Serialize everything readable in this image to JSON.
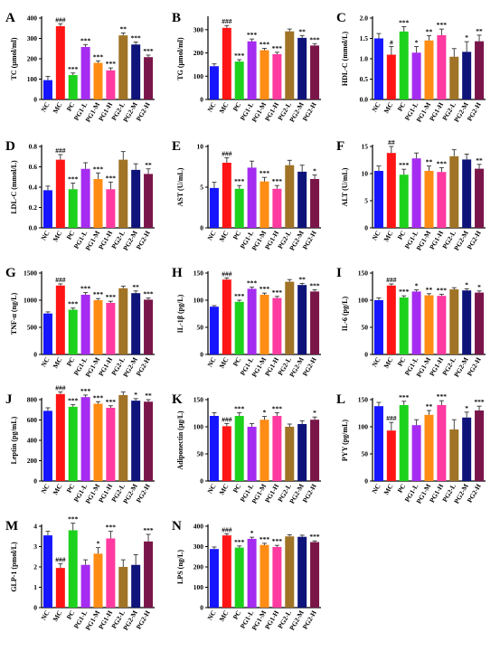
{
  "colors": [
    "#1515ff",
    "#ff1515",
    "#1dd21d",
    "#a52cf0",
    "#ff8c14",
    "#ff3aa0",
    "#a07326",
    "#0f147a",
    "#7a154a"
  ],
  "chart_data": [
    {
      "panel": "A",
      "type": "bar",
      "ylabel": "TC (μmol/ml)",
      "ylim": [
        0,
        400
      ],
      "yticks": [
        0,
        100,
        200,
        300,
        400
      ],
      "categories": [
        "NC",
        "MC",
        "PC",
        "PG1-L",
        "PG1-M",
        "PG1-H",
        "PG2-L",
        "PG2-M",
        "PG2-H"
      ],
      "values": [
        95,
        360,
        120,
        258,
        180,
        143,
        315,
        270,
        208
      ],
      "errors": [
        18,
        12,
        10,
        12,
        10,
        12,
        12,
        12,
        10
      ],
      "sig": [
        "",
        "###",
        "***",
        "***",
        "***",
        "***",
        "**",
        "***",
        "***"
      ]
    },
    {
      "panel": "B",
      "type": "bar",
      "ylabel": "TG (μmol/ml)",
      "ylim": [
        0,
        350
      ],
      "yticks": [
        0,
        100,
        200,
        300
      ],
      "categories": [
        "NC",
        "MC",
        "PC",
        "PG1-L",
        "PG1-M",
        "PG1-H",
        "PG2-L",
        "PG2-M",
        "PG2-H"
      ],
      "values": [
        143,
        308,
        163,
        250,
        212,
        195,
        293,
        265,
        232
      ],
      "errors": [
        10,
        10,
        8,
        10,
        8,
        8,
        10,
        10,
        8
      ],
      "sig": [
        "",
        "###",
        "***",
        "***",
        "***",
        "***",
        "",
        "**",
        "***"
      ]
    },
    {
      "panel": "C",
      "type": "bar",
      "ylabel": "HDL-C (mmol/L)",
      "ylim": [
        0,
        2.0
      ],
      "yticks": [
        0.0,
        0.5,
        1.0,
        1.5,
        2.0
      ],
      "categories": [
        "NC",
        "MC",
        "PC",
        "PG1-L",
        "PG1-M",
        "PG1-H",
        "PG2-L",
        "PG2-M",
        "PG2-H"
      ],
      "values": [
        1.5,
        1.1,
        1.67,
        1.15,
        1.45,
        1.58,
        1.05,
        1.17,
        1.43
      ],
      "errors": [
        0.12,
        0.2,
        0.12,
        0.15,
        0.12,
        0.15,
        0.2,
        0.25,
        0.15
      ],
      "sig": [
        "",
        "#",
        "***",
        "*",
        "**",
        "***",
        "",
        "*",
        "**"
      ]
    },
    {
      "panel": "D",
      "type": "bar",
      "ylabel": "LDL-C (mmol/L)",
      "ylim": [
        0,
        0.8
      ],
      "yticks": [
        0.0,
        0.2,
        0.4,
        0.6,
        0.8
      ],
      "categories": [
        "NC",
        "MC",
        "PC",
        "PG1-L",
        "PG1-M",
        "PG1-H",
        "PG2-L",
        "PG2-M",
        "PG2-H"
      ],
      "values": [
        0.37,
        0.67,
        0.38,
        0.58,
        0.48,
        0.38,
        0.67,
        0.57,
        0.53
      ],
      "errors": [
        0.04,
        0.05,
        0.06,
        0.06,
        0.06,
        0.07,
        0.08,
        0.06,
        0.05
      ],
      "sig": [
        "",
        "###",
        "***",
        "",
        "***",
        "***",
        "",
        "",
        "**"
      ]
    },
    {
      "panel": "E",
      "type": "bar",
      "ylabel": "AST (U/mL)",
      "ylim": [
        0,
        10
      ],
      "yticks": [
        0,
        5,
        10
      ],
      "categories": [
        "NC",
        "MC",
        "PC",
        "PG1-L",
        "PG1-M",
        "PG1-H",
        "PG2-L",
        "PG2-M",
        "PG2-H"
      ],
      "values": [
        4.9,
        8.0,
        4.8,
        7.4,
        5.7,
        4.8,
        7.7,
        6.9,
        6.0
      ],
      "errors": [
        0.7,
        0.6,
        0.4,
        0.8,
        0.5,
        0.4,
        0.6,
        0.8,
        0.5
      ],
      "sig": [
        "",
        "###",
        "***",
        "",
        "***",
        "***",
        "",
        "",
        "*"
      ]
    },
    {
      "panel": "F",
      "type": "bar",
      "ylabel": "ALT (U/mL)",
      "ylim": [
        0,
        15
      ],
      "yticks": [
        0,
        5,
        10,
        15
      ],
      "categories": [
        "NC",
        "MC",
        "PC",
        "PG1-L",
        "PG1-M",
        "PG1-H",
        "PG2-L",
        "PG2-M",
        "PG2-H"
      ],
      "values": [
        10.5,
        13.8,
        9.8,
        12.8,
        10.5,
        10.3,
        13.2,
        12.6,
        10.9
      ],
      "errors": [
        0.9,
        1.2,
        1.0,
        1.0,
        0.9,
        0.8,
        1.2,
        1.0,
        0.8
      ],
      "sig": [
        "",
        "##",
        "***",
        "",
        "**",
        "***",
        "",
        "",
        "**"
      ]
    },
    {
      "panel": "G",
      "type": "bar",
      "ylabel": "TNF-α (ng/L)",
      "ylim": [
        0,
        1500
      ],
      "yticks": [
        0,
        500,
        1000,
        1500
      ],
      "categories": [
        "NC",
        "MC",
        "PC",
        "PG1-L",
        "PG1-M",
        "PG1-H",
        "PG2-L",
        "PG2-M",
        "PG2-H"
      ],
      "values": [
        755,
        1270,
        825,
        1100,
        1000,
        950,
        1220,
        1130,
        1010
      ],
      "errors": [
        30,
        30,
        30,
        40,
        30,
        30,
        40,
        40,
        30
      ],
      "sig": [
        "",
        "###",
        "***",
        "***",
        "***",
        "***",
        "",
        "**",
        "***"
      ]
    },
    {
      "panel": "H",
      "type": "bar",
      "ylabel": "IL-1β (pg/L)",
      "ylim": [
        0,
        150
      ],
      "yticks": [
        0,
        50,
        100,
        150
      ],
      "categories": [
        "NC",
        "MC",
        "PC",
        "PG1-L",
        "PG1-M",
        "PG1-H",
        "PG2-L",
        "PG2-M",
        "PG2-H"
      ],
      "values": [
        88,
        138,
        97,
        121,
        110,
        104,
        134,
        128,
        116
      ],
      "errors": [
        2,
        3,
        3,
        3,
        3,
        3,
        4,
        3,
        3
      ],
      "sig": [
        "",
        "###",
        "***",
        "***",
        "***",
        "***",
        "",
        "**",
        "***"
      ]
    },
    {
      "panel": "I",
      "type": "bar",
      "ylabel": "IL-6 (pg/L)",
      "ylim": [
        0,
        150
      ],
      "yticks": [
        0,
        50,
        100,
        150
      ],
      "categories": [
        "NC",
        "MC",
        "PC",
        "PG1-L",
        "PG1-M",
        "PG1-H",
        "PG2-L",
        "PG2-M",
        "PG2-H"
      ],
      "values": [
        100,
        127,
        105,
        116,
        109,
        108,
        120,
        118,
        114
      ],
      "errors": [
        4,
        3,
        3,
        3,
        3,
        3,
        3,
        3,
        3
      ],
      "sig": [
        "",
        "###",
        "***",
        "*",
        "**",
        "***",
        "",
        "*",
        "*"
      ]
    },
    {
      "panel": "J",
      "type": "bar",
      "ylabel": "Leptin (pg/mL)",
      "ylim": [
        0,
        800
      ],
      "yticks": [
        0,
        200,
        400,
        600,
        800
      ],
      "categories": [
        "NC",
        "MC",
        "PC",
        "PG1-L",
        "PG1-M",
        "PG1-H",
        "PG2-L",
        "PG2-M",
        "PG2-H"
      ],
      "values": [
        690,
        855,
        730,
        825,
        760,
        720,
        845,
        790,
        780
      ],
      "errors": [
        30,
        20,
        20,
        20,
        20,
        20,
        30,
        20,
        20
      ],
      "sig": [
        "",
        "###",
        "***",
        "***",
        "***",
        "***",
        "",
        "*",
        "**"
      ]
    },
    {
      "panel": "K",
      "type": "bar",
      "ylabel": "Adiponectin (μg/L)",
      "ylim": [
        0,
        150
      ],
      "yticks": [
        0,
        50,
        100,
        150
      ],
      "categories": [
        "NC",
        "MC",
        "PC",
        "PG1-L",
        "PG1-M",
        "PG1-H",
        "PG2-L",
        "PG2-M",
        "PG2-H"
      ],
      "values": [
        120,
        101,
        120,
        100,
        113,
        120,
        100,
        105,
        113
      ],
      "errors": [
        6,
        5,
        6,
        6,
        6,
        6,
        5,
        6,
        5
      ],
      "sig": [
        "",
        "###",
        "***",
        "",
        "*",
        "***",
        "",
        "",
        "*"
      ]
    },
    {
      "panel": "L",
      "type": "bar",
      "ylabel": "PYY (pg/mL)",
      "ylim": [
        0,
        150
      ],
      "yticks": [
        0,
        50,
        100,
        150
      ],
      "categories": [
        "NC",
        "MC",
        "PC",
        "PG1-L",
        "PG1-M",
        "PG1-H",
        "PG2-L",
        "PG2-M",
        "PG2-H"
      ],
      "values": [
        138,
        93,
        140,
        103,
        122,
        140,
        95,
        117,
        130
      ],
      "errors": [
        7,
        15,
        7,
        10,
        8,
        8,
        18,
        10,
        8
      ],
      "sig": [
        "",
        "###",
        "***",
        "",
        "**",
        "***",
        "",
        "*",
        "***"
      ]
    },
    {
      "panel": "M",
      "type": "bar",
      "ylabel": "GLP-1 (pmol/L)",
      "ylim": [
        0,
        4
      ],
      "yticks": [
        0,
        1,
        2,
        3,
        4
      ],
      "categories": [
        "NC",
        "MC",
        "PC",
        "PG1-L",
        "PG1-M",
        "PG1-H",
        "PG2-L",
        "PG2-M",
        "PG2-H"
      ],
      "values": [
        3.55,
        1.95,
        3.8,
        2.1,
        2.65,
        3.4,
        2.0,
        2.1,
        3.25
      ],
      "errors": [
        0.2,
        0.2,
        0.35,
        0.25,
        0.3,
        0.35,
        0.35,
        0.5,
        0.35
      ],
      "sig": [
        "",
        "###",
        "***",
        "",
        "*",
        "***",
        "",
        "",
        "***"
      ]
    },
    {
      "panel": "N",
      "type": "bar",
      "ylabel": "LPS (ng/L)",
      "ylim": [
        0,
        400
      ],
      "yticks": [
        0,
        100,
        200,
        300,
        400
      ],
      "categories": [
        "NC",
        "MC",
        "PC",
        "PG1-L",
        "PG1-M",
        "PG1-H",
        "PG2-L",
        "PG2-M",
        "PG2-H"
      ],
      "values": [
        288,
        355,
        295,
        338,
        308,
        298,
        350,
        348,
        322
      ],
      "errors": [
        10,
        8,
        8,
        8,
        8,
        8,
        8,
        8,
        6
      ],
      "sig": [
        "",
        "###",
        "***",
        "*",
        "***",
        "***",
        "",
        "",
        "***"
      ]
    }
  ]
}
